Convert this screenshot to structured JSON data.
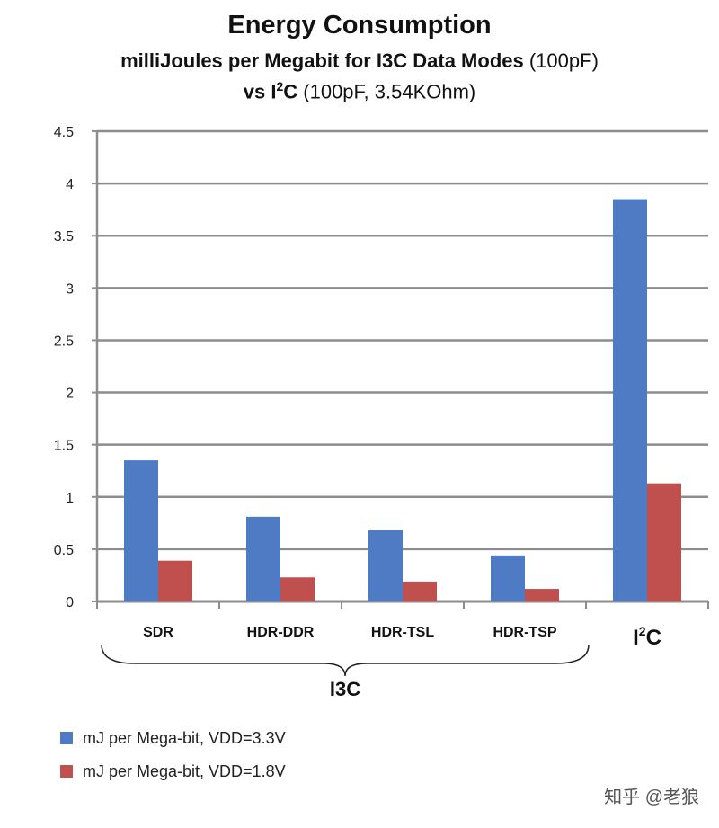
{
  "chart_data": {
    "type": "bar",
    "title": "Energy Consumption",
    "subtitle_bold": "milliJoules per Megabit for I3C Data Modes",
    "subtitle_normal": "(100pF)",
    "subtitle2_bold_prefix": "vs I",
    "subtitle2_sup": "2",
    "subtitle2_bold_suffix": "C",
    "subtitle2_normal": "(100pF, 3.54KOhm)",
    "categories": [
      "SDR",
      "HDR-DDR",
      "HDR-TSL",
      "HDR-TSP",
      "I2C"
    ],
    "group_label": "I3C",
    "series": [
      {
        "name": "mJ per Mega-bit, VDD=3.3V",
        "color": "#4f7bc4",
        "values": [
          1.35,
          0.81,
          0.68,
          0.44,
          3.85
        ]
      },
      {
        "name": "mJ per Mega-bit, VDD=1.8V",
        "color": "#c0504d",
        "values": [
          0.39,
          0.23,
          0.19,
          0.12,
          1.13
        ]
      }
    ],
    "yticks": [
      "0",
      "0.5",
      "1",
      "1.5",
      "2",
      "2.5",
      "3",
      "3.5",
      "4",
      "4.5"
    ],
    "ylim": [
      0,
      4.5
    ],
    "grid": true,
    "legend": "bottom-left",
    "xlabel": "",
    "ylabel": ""
  },
  "watermark": "知乎 @老狼"
}
